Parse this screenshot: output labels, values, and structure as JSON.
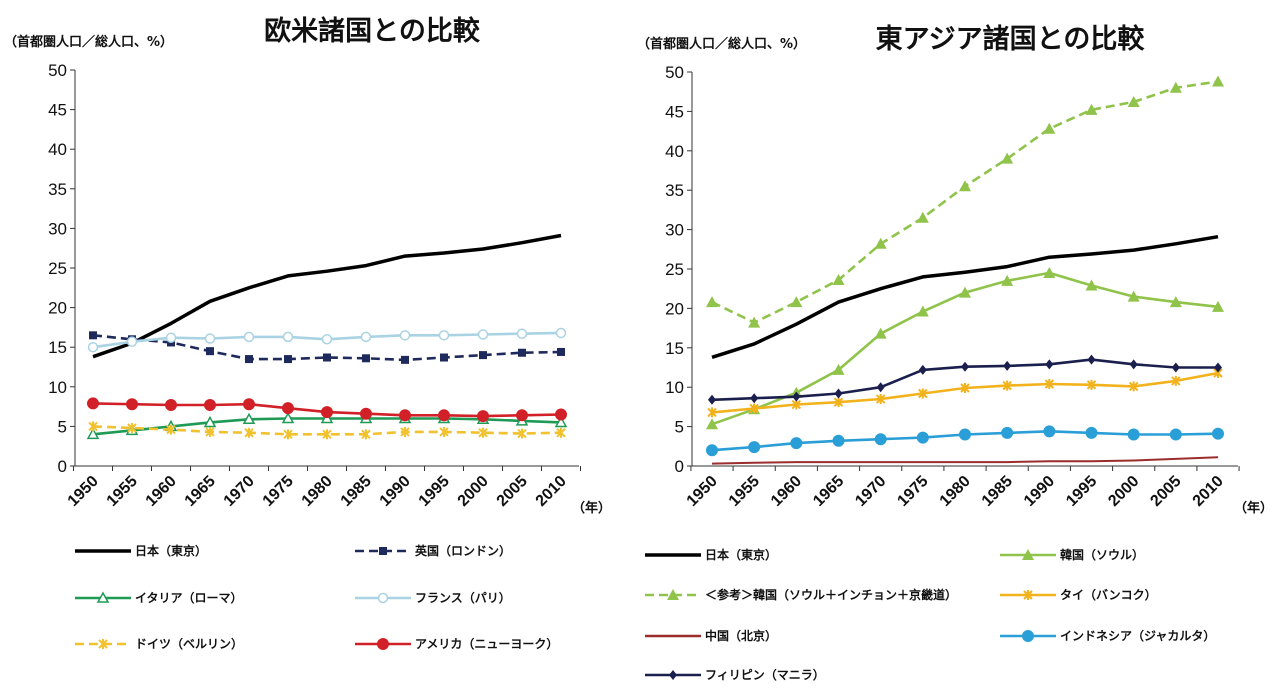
{
  "chart_data": [
    {
      "type": "line",
      "title": "欧米諸国との比較",
      "ylabel": "（首都圏人口／総人口、%）",
      "xunit": "（年）",
      "ylim": [
        0,
        50
      ],
      "yticks": [
        0,
        5,
        10,
        15,
        20,
        25,
        30,
        35,
        40,
        45,
        50
      ],
      "x": [
        1950,
        1955,
        1960,
        1965,
        1970,
        1975,
        1980,
        1985,
        1990,
        1995,
        2000,
        2005,
        2010
      ],
      "grid": false,
      "legend_position": "bottom",
      "series": [
        {
          "name": "日本（東京）",
          "color": "#000000",
          "style": "solid",
          "marker": "none",
          "x": [
            1950,
            1955,
            1960,
            1965,
            1970,
            1975,
            1980,
            1985,
            1990,
            1995,
            2000,
            2005,
            2010
          ],
          "values": [
            13.8,
            15.5,
            18.0,
            20.8,
            22.5,
            24.0,
            24.6,
            25.3,
            26.5,
            26.9,
            27.4,
            28.2,
            29.1
          ]
        },
        {
          "name": "英国（ロンドン）",
          "color": "#1f2a5c",
          "style": "dashed",
          "marker": "square",
          "x": [
            1950,
            1955,
            1960,
            1965,
            1970,
            1975,
            1980,
            1985,
            1990,
            1995,
            2000,
            2005,
            2010
          ],
          "values": [
            16.5,
            16.0,
            15.6,
            14.5,
            13.5,
            13.5,
            13.7,
            13.6,
            13.4,
            13.7,
            14.0,
            14.3,
            14.4
          ]
        },
        {
          "name": "イタリア（ローマ）",
          "color": "#1e9a55",
          "style": "solid",
          "marker": "triangle",
          "x": [
            1950,
            1955,
            1960,
            1965,
            1970,
            1975,
            1980,
            1985,
            1990,
            1995,
            2000,
            2005,
            2010
          ],
          "values": [
            4.0,
            4.5,
            5.0,
            5.5,
            5.9,
            6.0,
            6.0,
            6.0,
            6.0,
            6.0,
            5.9,
            5.7,
            5.5
          ]
        },
        {
          "name": "フランス（パリ）",
          "color": "#a9d3e3",
          "style": "solid",
          "marker": "circle-open",
          "x": [
            1950,
            1955,
            1960,
            1965,
            1970,
            1975,
            1980,
            1985,
            1990,
            1995,
            2000,
            2005,
            2010
          ],
          "values": [
            15.0,
            15.7,
            16.2,
            16.1,
            16.3,
            16.3,
            16.0,
            16.3,
            16.5,
            16.5,
            16.6,
            16.7,
            16.8
          ]
        },
        {
          "name": "ドイツ（ベルリン）",
          "color": "#f2c12e",
          "style": "dashed",
          "marker": "x",
          "x": [
            1950,
            1955,
            1960,
            1965,
            1970,
            1975,
            1980,
            1985,
            1990,
            1995,
            2000,
            2005,
            2010
          ],
          "values": [
            5.0,
            4.8,
            4.6,
            4.3,
            4.2,
            4.0,
            4.0,
            4.0,
            4.3,
            4.3,
            4.2,
            4.1,
            4.2
          ]
        },
        {
          "name": "アメリカ（ニューヨーク）",
          "color": "#d12027",
          "style": "solid",
          "marker": "circle",
          "x": [
            1950,
            1955,
            1960,
            1965,
            1970,
            1975,
            1980,
            1985,
            1990,
            1995,
            2000,
            2005,
            2010
          ],
          "values": [
            7.9,
            7.8,
            7.7,
            7.7,
            7.8,
            7.3,
            6.8,
            6.6,
            6.4,
            6.4,
            6.3,
            6.4,
            6.5
          ]
        }
      ]
    },
    {
      "type": "line",
      "title": "東アジア諸国との比較",
      "ylabel": "（首都圏人口／総人口、%）",
      "xunit": "（年）",
      "ylim": [
        0,
        50
      ],
      "yticks": [
        0,
        5,
        10,
        15,
        20,
        25,
        30,
        35,
        40,
        45,
        50
      ],
      "x": [
        1950,
        1955,
        1960,
        1965,
        1970,
        1975,
        1980,
        1985,
        1990,
        1995,
        2000,
        2005,
        2010
      ],
      "grid": false,
      "legend_position": "bottom",
      "series": [
        {
          "name": "日本（東京）",
          "color": "#000000",
          "style": "solid",
          "marker": "none",
          "x": [
            1950,
            1955,
            1960,
            1965,
            1970,
            1975,
            1980,
            1985,
            1990,
            1995,
            2000,
            2005,
            2010
          ],
          "values": [
            13.8,
            15.5,
            18.0,
            20.8,
            22.5,
            24.0,
            24.6,
            25.3,
            26.5,
            26.9,
            27.4,
            28.2,
            29.1
          ]
        },
        {
          "name": "韓国（ソウル）",
          "color": "#8fc34a",
          "style": "solid",
          "marker": "triangle-filled",
          "x": [
            1950,
            1955,
            1960,
            1965,
            1970,
            1975,
            1980,
            1985,
            1990,
            1995,
            2000,
            2005,
            2010
          ],
          "values": [
            5.3,
            7.2,
            9.3,
            12.2,
            16.8,
            19.6,
            22.0,
            23.5,
            24.5,
            22.9,
            21.5,
            20.8,
            20.2
          ]
        },
        {
          "name": "＜参考＞韓国（ソウル＋インチョン＋京畿道）",
          "color": "#8fc34a",
          "style": "dashed",
          "marker": "triangle-filled",
          "x": [
            1950,
            1955,
            1960,
            1965,
            1970,
            1975,
            1980,
            1985,
            1990,
            1995,
            2000,
            2005,
            2010
          ],
          "values": [
            20.8,
            18.2,
            20.8,
            23.6,
            28.2,
            31.5,
            35.5,
            39.0,
            42.8,
            45.2,
            46.2,
            48.0,
            48.8
          ]
        },
        {
          "name": "タイ（バンコク）",
          "color": "#f2b21c",
          "style": "solid",
          "marker": "x",
          "x": [
            1950,
            1955,
            1960,
            1965,
            1970,
            1975,
            1980,
            1985,
            1990,
            1995,
            2000,
            2005,
            2010
          ],
          "values": [
            6.8,
            7.3,
            7.8,
            8.1,
            8.5,
            9.2,
            9.9,
            10.2,
            10.4,
            10.3,
            10.1,
            10.8,
            11.8
          ]
        },
        {
          "name": "中国（北京）",
          "color": "#9b2d2d",
          "style": "solid",
          "marker": "none",
          "x": [
            1950,
            1955,
            1960,
            1965,
            1970,
            1975,
            1980,
            1985,
            1990,
            1995,
            2000,
            2005,
            2010
          ],
          "values": [
            0.3,
            0.4,
            0.5,
            0.5,
            0.5,
            0.5,
            0.5,
            0.5,
            0.6,
            0.6,
            0.7,
            0.9,
            1.1
          ]
        },
        {
          "name": "インドネシア（ジャカルタ）",
          "color": "#2a9ed6",
          "style": "solid",
          "marker": "circle",
          "x": [
            1950,
            1955,
            1960,
            1965,
            1970,
            1975,
            1980,
            1985,
            1990,
            1995,
            2000,
            2005,
            2010
          ],
          "values": [
            2.0,
            2.4,
            2.9,
            3.2,
            3.4,
            3.6,
            4.0,
            4.2,
            4.4,
            4.2,
            4.0,
            4.0,
            4.1
          ]
        },
        {
          "name": "フィリピン（マニラ）",
          "color": "#1b1f4d",
          "style": "solid",
          "marker": "diamond",
          "x": [
            1950,
            1955,
            1960,
            1965,
            1970,
            1975,
            1980,
            1985,
            1990,
            1995,
            2000,
            2005,
            2010
          ],
          "values": [
            8.4,
            8.6,
            8.8,
            9.2,
            10.0,
            12.2,
            12.6,
            12.7,
            12.9,
            13.5,
            12.9,
            12.5,
            12.5
          ]
        }
      ]
    }
  ]
}
